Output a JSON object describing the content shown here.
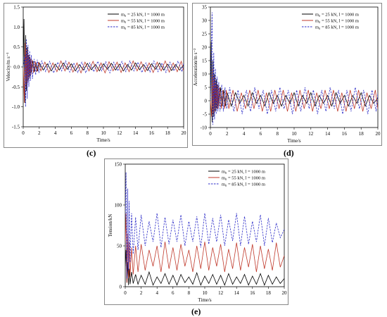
{
  "chart_data": [
    {
      "type": "line",
      "panel": "(c)",
      "xlabel": "Time/s",
      "ylabel": "Velocity/m s⁻¹",
      "xlim": [
        0,
        20
      ],
      "ylim": [
        -1.5,
        1.5
      ],
      "xticks": [
        "0",
        "2",
        "4",
        "6",
        "8",
        "10",
        "12",
        "14",
        "16",
        "18",
        "20"
      ],
      "yticks": [
        "-1.5",
        "-1.0",
        "-0.5",
        "0.0",
        "0.5",
        "1.0",
        "1.5"
      ],
      "grid": false,
      "legend": "top-right",
      "series": [
        {
          "name": "m₀ = 25 kN, l = 1000 m",
          "color": "#000000",
          "dash": "solid",
          "x": [
            0,
            0.1,
            0.2,
            0.3,
            0.4,
            0.5,
            0.6,
            0.7,
            0.8,
            0.9,
            1.0,
            1.2,
            1.4,
            1.6,
            1.8,
            2.0,
            2.5,
            3,
            3.5,
            4,
            4.5,
            5,
            5.5,
            6,
            6.5,
            7,
            7.5,
            8,
            8.5,
            9,
            9.5,
            10,
            10.5,
            11,
            11.5,
            12,
            12.5,
            13,
            13.5,
            14,
            14.5,
            15,
            15.5,
            16,
            16.5,
            17,
            17.5,
            18,
            18.5,
            19,
            19.5,
            20
          ],
          "y": [
            0,
            1.2,
            -0.9,
            0.8,
            -0.6,
            0.5,
            -0.35,
            0.3,
            -0.25,
            0.2,
            -0.15,
            0.15,
            -0.12,
            0.1,
            -0.1,
            0.1,
            -0.08,
            0.08,
            -0.1,
            0.07,
            -0.08,
            0.1,
            -0.06,
            0.08,
            -0.1,
            0.06,
            -0.08,
            0.09,
            -0.07,
            0.06,
            -0.1,
            0.08,
            -0.06,
            0.09,
            -0.08,
            0.07,
            -0.1,
            0.06,
            -0.08,
            0.1,
            -0.07,
            0.06,
            -0.09,
            0.08,
            -0.06,
            0.1,
            -0.08,
            0.07,
            -0.09,
            0.06,
            -0.08,
            0.05
          ]
        },
        {
          "name": "m₀ = 55 kN, l = 1000 m",
          "color": "#c0392b",
          "dash": "solid",
          "x": [
            0,
            0.15,
            0.25,
            0.35,
            0.45,
            0.55,
            0.65,
            0.75,
            0.85,
            0.95,
            1.1,
            1.3,
            1.5,
            1.7,
            1.9,
            2.2,
            2.7,
            3.2,
            3.7,
            4.2,
            4.7,
            5.2,
            5.7,
            6.2,
            6.7,
            7.2,
            7.7,
            8.2,
            8.7,
            9.2,
            9.7,
            10.2,
            10.7,
            11.2,
            11.7,
            12.2,
            12.7,
            13.2,
            13.7,
            14.2,
            14.7,
            15.2,
            15.7,
            16.2,
            16.7,
            17.2,
            17.7,
            18.2,
            18.7,
            19.2,
            19.7,
            20
          ],
          "y": [
            0,
            -0.9,
            0.6,
            -0.5,
            0.45,
            -0.4,
            0.3,
            -0.3,
            0.25,
            -0.2,
            0.18,
            -0.15,
            0.14,
            -0.12,
            0.12,
            -0.1,
            0.12,
            -0.14,
            0.1,
            -0.12,
            0.15,
            -0.1,
            0.12,
            -0.13,
            0.1,
            -0.15,
            0.12,
            -0.1,
            0.14,
            -0.12,
            0.1,
            -0.15,
            0.13,
            -0.1,
            0.12,
            -0.14,
            0.1,
            -0.12,
            0.15,
            -0.1,
            0.13,
            -0.12,
            0.1,
            -0.14,
            0.12,
            -0.1,
            0.15,
            -0.13,
            0.1,
            -0.12,
            0.14,
            -0.1
          ]
        },
        {
          "name": "m₀ = 85 kN, l = 1000 m",
          "color": "#2c2cc8",
          "dash": "dashed",
          "x": [
            0,
            0.2,
            0.3,
            0.4,
            0.5,
            0.6,
            0.7,
            0.8,
            0.9,
            1.0,
            1.15,
            1.35,
            1.55,
            1.75,
            1.95,
            2.3,
            2.8,
            3.3,
            3.8,
            4.3,
            4.8,
            5.3,
            5.8,
            6.3,
            6.8,
            7.3,
            7.8,
            8.3,
            8.8,
            9.3,
            9.8,
            10.3,
            10.8,
            11.3,
            11.8,
            12.3,
            12.8,
            13.3,
            13.8,
            14.3,
            14.8,
            15.3,
            15.8,
            16.3,
            16.8,
            17.3,
            17.8,
            18.3,
            18.8,
            19.3,
            19.8,
            20
          ],
          "y": [
            0,
            0.3,
            -1.0,
            0.7,
            -0.8,
            0.55,
            -0.5,
            0.4,
            -0.35,
            0.3,
            -0.3,
            0.2,
            -0.2,
            0.18,
            -0.15,
            0.15,
            -0.12,
            0.14,
            -0.15,
            0.12,
            -0.1,
            0.15,
            -0.13,
            0.1,
            -0.14,
            0.12,
            -0.15,
            0.1,
            -0.12,
            0.14,
            -0.1,
            0.13,
            -0.15,
            0.12,
            -0.1,
            0.14,
            -0.12,
            0.15,
            -0.1,
            0.12,
            -0.14,
            0.1,
            -0.13,
            0.15,
            -0.12,
            0.1,
            -0.14,
            0.12,
            -0.1,
            0.15,
            -0.12,
            0.1
          ]
        }
      ]
    },
    {
      "type": "line",
      "panel": "(d)",
      "xlabel": "Time/s",
      "ylabel": "Acceleration/m s⁻²",
      "xlim": [
        0,
        20
      ],
      "ylim": [
        -10,
        35
      ],
      "xticks": [
        "0",
        "2",
        "4",
        "6",
        "8",
        "10",
        "12",
        "14",
        "16",
        "18",
        "20"
      ],
      "yticks": [
        "-10",
        "-5",
        "0",
        "5",
        "10",
        "15",
        "20",
        "25",
        "30",
        "35"
      ],
      "grid": false,
      "legend": "top-right",
      "series": [
        {
          "name": "m₀ = 25 kN, l = 1000 m",
          "color": "#000000",
          "dash": "solid",
          "x": [
            0,
            0.1,
            0.2,
            0.3,
            0.4,
            0.5,
            0.6,
            0.7,
            0.8,
            0.9,
            1.0,
            1.2,
            1.4,
            1.6,
            1.8,
            2.0,
            2.5,
            3,
            3.5,
            4,
            4.5,
            5,
            5.5,
            6,
            6.5,
            7,
            7.5,
            8,
            8.5,
            9,
            9.5,
            10,
            10.5,
            11,
            11.5,
            12,
            12.5,
            13,
            13.5,
            14,
            14.5,
            15,
            15.5,
            16,
            16.5,
            17,
            17.5,
            18,
            18.5,
            19,
            19.5,
            20
          ],
          "y": [
            0,
            22,
            -8,
            15,
            -6,
            10,
            -4,
            8,
            -3,
            6,
            -2,
            5,
            -2,
            4,
            -2,
            3,
            -2,
            3,
            -1,
            2,
            -2,
            3,
            -1,
            2,
            -2,
            3,
            -1,
            2,
            -2,
            2,
            -1,
            3,
            -2,
            2,
            -1,
            3,
            -2,
            2,
            -1,
            2,
            -2,
            3,
            -1,
            2,
            -2,
            2,
            -1,
            3,
            -2,
            2,
            -1,
            1
          ]
        },
        {
          "name": "m₀ = 55 kN, l = 1000 m",
          "color": "#c0392b",
          "dash": "solid",
          "x": [
            0,
            0.15,
            0.25,
            0.35,
            0.45,
            0.55,
            0.65,
            0.75,
            0.85,
            0.95,
            1.1,
            1.3,
            1.5,
            1.7,
            1.9,
            2.2,
            2.7,
            3.2,
            3.7,
            4.2,
            4.7,
            5.2,
            5.7,
            6.2,
            6.7,
            7.2,
            7.7,
            8.2,
            8.7,
            9.2,
            9.7,
            10.2,
            10.7,
            11.2,
            11.7,
            12.2,
            12.7,
            13.2,
            13.7,
            14.2,
            14.7,
            15.2,
            15.7,
            16.2,
            16.7,
            17.2,
            17.7,
            18.2,
            18.7,
            19.2,
            19.7,
            20
          ],
          "y": [
            0,
            -6,
            12,
            -5,
            9,
            -4,
            7,
            -3,
            6,
            -3,
            5,
            -3,
            4,
            -3,
            4,
            -3,
            4,
            -4,
            3,
            -3,
            4,
            -3,
            4,
            -4,
            3,
            -4,
            4,
            -3,
            4,
            -4,
            3,
            -4,
            4,
            -3,
            4,
            -4,
            3,
            -3,
            4,
            -3,
            4,
            -4,
            3,
            -4,
            4,
            -3,
            4,
            -4,
            3,
            -3,
            4,
            -3
          ]
        },
        {
          "name": "m₀ = 85 kN, l = 1000 m",
          "color": "#2c2cc8",
          "dash": "dashed",
          "x": [
            0,
            0.2,
            0.3,
            0.4,
            0.5,
            0.6,
            0.7,
            0.8,
            0.9,
            1.0,
            1.15,
            1.35,
            1.55,
            1.75,
            1.95,
            2.3,
            2.8,
            3.3,
            3.8,
            4.3,
            4.8,
            5.3,
            5.8,
            6.3,
            6.8,
            7.3,
            7.8,
            8.3,
            8.8,
            9.3,
            9.8,
            10.3,
            10.8,
            11.3,
            11.8,
            12.3,
            12.8,
            13.3,
            13.8,
            14.3,
            14.8,
            15.3,
            15.8,
            16.3,
            16.8,
            17.3,
            17.8,
            18.3,
            18.8,
            19.3,
            19.8,
            20
          ],
          "y": [
            0,
            33,
            -9,
            18,
            -7,
            12,
            -5,
            9,
            -4,
            7,
            -4,
            6,
            -4,
            5,
            -3,
            5,
            -4,
            4,
            -5,
            4,
            -4,
            5,
            -3,
            4,
            -5,
            4,
            -4,
            5,
            -3,
            4,
            -5,
            4,
            -4,
            5,
            -3,
            4,
            -5,
            4,
            -4,
            5,
            -3,
            4,
            -5,
            4,
            -4,
            5,
            -3,
            4,
            -5,
            4,
            -4,
            3
          ]
        }
      ]
    },
    {
      "type": "line",
      "panel": "(e)",
      "xlabel": "Time/s",
      "ylabel": "Tension/kN",
      "xlim": [
        0,
        20
      ],
      "ylim": [
        0,
        150
      ],
      "xticks": [
        "0",
        "2",
        "4",
        "6",
        "8",
        "10",
        "12",
        "14",
        "16",
        "18",
        "20"
      ],
      "yticks": [
        "0",
        "50",
        "100",
        "150"
      ],
      "grid": false,
      "legend": "top-right",
      "series": [
        {
          "name": "m₀ = 25 kN, l = 1000 m",
          "color": "#000000",
          "dash": "solid",
          "x": [
            0,
            0.1,
            0.2,
            0.3,
            0.4,
            0.5,
            0.6,
            0.8,
            1.0,
            1.3,
            1.6,
            2.0,
            2.5,
            3,
            3.5,
            4,
            4.5,
            5,
            5.5,
            6,
            6.5,
            7,
            7.5,
            8,
            8.5,
            9,
            9.5,
            10,
            10.5,
            11,
            11.5,
            12,
            12.5,
            13,
            13.5,
            14,
            14.5,
            15,
            15.5,
            16,
            16.5,
            17,
            17.5,
            18,
            18.5,
            19,
            19.5,
            20
          ],
          "y": [
            25,
            45,
            5,
            30,
            2,
            22,
            3,
            18,
            4,
            15,
            3,
            14,
            3,
            18,
            2,
            12,
            4,
            16,
            3,
            14,
            2,
            15,
            5,
            12,
            3,
            17,
            2,
            13,
            4,
            15,
            3,
            14,
            2,
            16,
            3,
            12,
            4,
            15,
            2,
            13,
            3,
            16,
            2,
            14,
            3,
            12,
            4,
            10
          ]
        },
        {
          "name": "m₀ = 55 kN, l = 1000 m",
          "color": "#c0392b",
          "dash": "solid",
          "x": [
            0,
            0.1,
            0.2,
            0.3,
            0.4,
            0.5,
            0.6,
            0.8,
            1.0,
            1.3,
            1.6,
            2.0,
            2.5,
            3,
            3.5,
            4,
            4.5,
            5,
            5.5,
            6,
            6.5,
            7,
            7.5,
            8,
            8.5,
            9,
            9.5,
            10,
            10.5,
            11,
            11.5,
            12,
            12.5,
            13,
            13.5,
            14,
            14.5,
            15,
            15.5,
            16,
            16.5,
            17,
            17.5,
            18,
            18.5,
            19,
            19.5,
            20
          ],
          "y": [
            55,
            90,
            5,
            65,
            10,
            55,
            12,
            48,
            15,
            50,
            18,
            52,
            20,
            45,
            25,
            50,
            18,
            55,
            22,
            48,
            20,
            52,
            25,
            45,
            18,
            50,
            22,
            55,
            20,
            48,
            25,
            52,
            18,
            46,
            22,
            54,
            20,
            48,
            24,
            52,
            18,
            50,
            22,
            46,
            20,
            54,
            24,
            38
          ]
        },
        {
          "name": "m₀ = 85 kN, l = 1000 m",
          "color": "#2c2cc8",
          "dash": "dashed",
          "x": [
            0,
            0.1,
            0.2,
            0.3,
            0.4,
            0.5,
            0.6,
            0.8,
            1.0,
            1.3,
            1.6,
            2.0,
            2.5,
            3,
            3.5,
            4,
            4.5,
            5,
            5.5,
            6,
            6.5,
            7,
            7.5,
            8,
            8.5,
            9,
            9.5,
            10,
            10.5,
            11,
            11.5,
            12,
            12.5,
            13,
            13.5,
            14,
            14.5,
            15,
            15.5,
            16,
            16.5,
            17,
            17.5,
            18,
            18.5,
            19,
            19.5,
            20
          ],
          "y": [
            85,
            140,
            10,
            120,
            20,
            105,
            30,
            90,
            40,
            85,
            45,
            88,
            50,
            80,
            55,
            90,
            48,
            85,
            52,
            82,
            55,
            88,
            50,
            80,
            55,
            86,
            48,
            90,
            52,
            84,
            55,
            88,
            50,
            82,
            56,
            90,
            50,
            86,
            52,
            80,
            55,
            88,
            50,
            84,
            54,
            78,
            60,
            70
          ]
        }
      ]
    }
  ],
  "labels": {
    "c": "(c)",
    "d": "(d)",
    "e": "(e)"
  }
}
